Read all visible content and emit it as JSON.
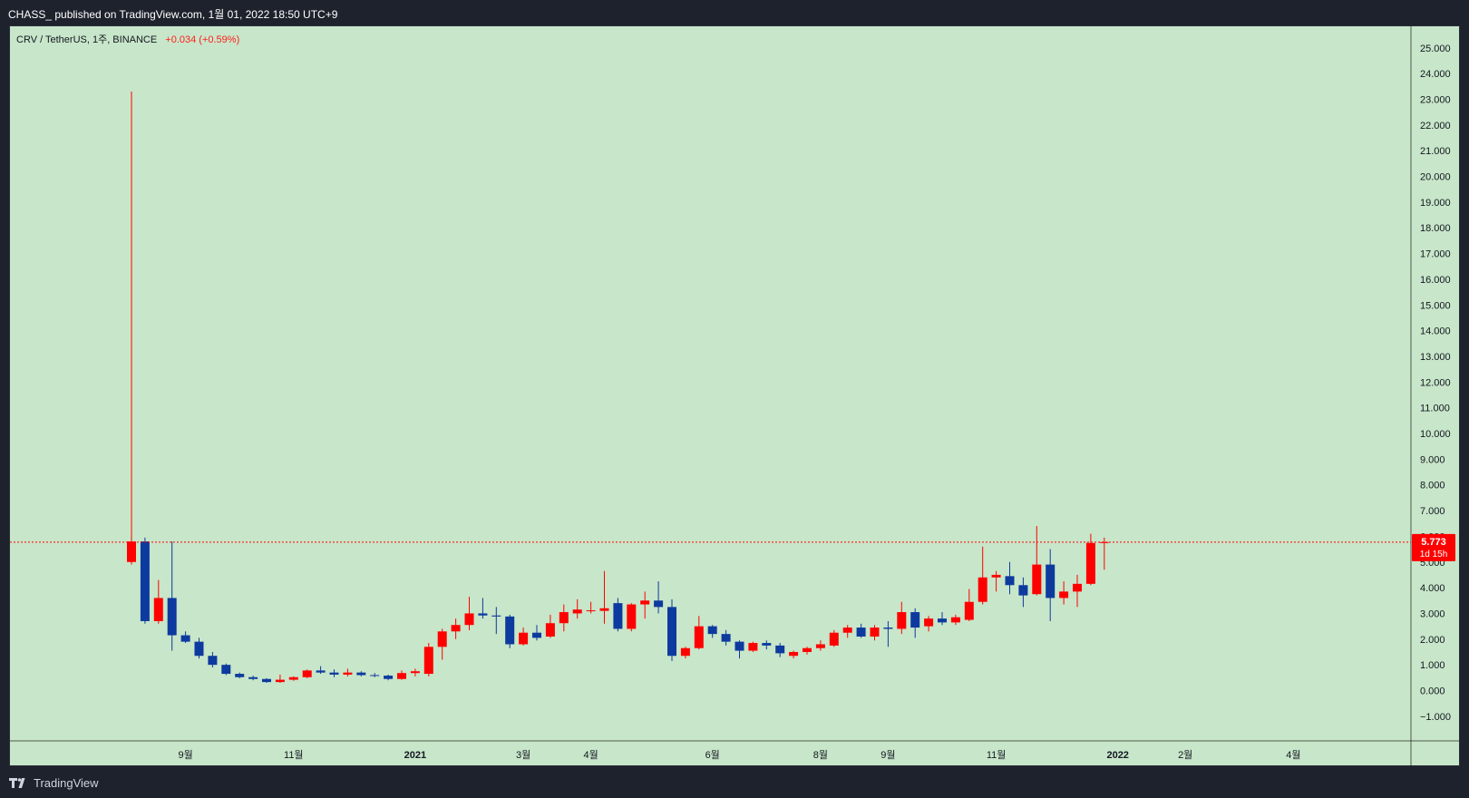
{
  "header": {
    "publish_line": "CHASS_ published on TradingView.com, 1월 01, 2022 18:50 UTC+9"
  },
  "legend": {
    "symbol": "CRV / TetherUS, 1주, BINANCE",
    "change": "+0.034 (+0.59%)"
  },
  "footer": {
    "brand": "TradingView"
  },
  "colors": {
    "up": "#ff0000",
    "down": "#0d3a9e",
    "background": "#c8e6c9",
    "last_price": "#ff0000"
  },
  "price_tag": {
    "price": "5.773",
    "countdown": "1d 15h"
  },
  "chart_data": {
    "type": "candlestick",
    "title": "CRV / TetherUS, 1주, BINANCE",
    "timeframe": "1W",
    "ylim": [
      -1.0,
      25.9
    ],
    "y_ticks": [
      "−1.000",
      "0.000",
      "1.000",
      "2.000",
      "3.000",
      "4.000",
      "5.000",
      "6.000",
      "7.000",
      "8.000",
      "9.000",
      "10.000",
      "11.000",
      "12.000",
      "13.000",
      "14.000",
      "15.000",
      "16.000",
      "17.000",
      "18.000",
      "19.000",
      "20.000",
      "21.000",
      "22.000",
      "23.000",
      "24.000",
      "25.000"
    ],
    "x_labels": [
      {
        "label": "9월",
        "bar": 4
      },
      {
        "label": "11월",
        "bar": 12
      },
      {
        "label": "2021",
        "bar": 21
      },
      {
        "label": "3월",
        "bar": 29
      },
      {
        "label": "4월",
        "bar": 34
      },
      {
        "label": "6월",
        "bar": 43
      },
      {
        "label": "8월",
        "bar": 51
      },
      {
        "label": "9월",
        "bar": 56
      },
      {
        "label": "11월",
        "bar": 64
      },
      {
        "label": "2022",
        "bar": 73
      },
      {
        "label": "2월",
        "bar": 78
      },
      {
        "label": "4월",
        "bar": 86
      }
    ],
    "last_price": 5.773,
    "candles": [
      {
        "o": 5.0,
        "h": 23.3,
        "l": 4.9,
        "c": 5.8
      },
      {
        "o": 5.8,
        "h": 5.95,
        "l": 2.6,
        "c": 2.7
      },
      {
        "o": 2.7,
        "h": 4.3,
        "l": 2.6,
        "c": 3.6
      },
      {
        "o": 3.6,
        "h": 5.8,
        "l": 1.55,
        "c": 2.15
      },
      {
        "o": 2.15,
        "h": 2.3,
        "l": 1.85,
        "c": 1.9
      },
      {
        "o": 1.9,
        "h": 2.05,
        "l": 1.25,
        "c": 1.35
      },
      {
        "o": 1.35,
        "h": 1.5,
        "l": 0.9,
        "c": 1.0
      },
      {
        "o": 1.0,
        "h": 1.05,
        "l": 0.6,
        "c": 0.65
      },
      {
        "o": 0.65,
        "h": 0.7,
        "l": 0.48,
        "c": 0.52
      },
      {
        "o": 0.52,
        "h": 0.58,
        "l": 0.4,
        "c": 0.45
      },
      {
        "o": 0.45,
        "h": 0.48,
        "l": 0.3,
        "c": 0.33
      },
      {
        "o": 0.33,
        "h": 0.62,
        "l": 0.3,
        "c": 0.42
      },
      {
        "o": 0.42,
        "h": 0.55,
        "l": 0.38,
        "c": 0.52
      },
      {
        "o": 0.52,
        "h": 0.82,
        "l": 0.48,
        "c": 0.78
      },
      {
        "o": 0.78,
        "h": 0.95,
        "l": 0.65,
        "c": 0.7
      },
      {
        "o": 0.7,
        "h": 0.82,
        "l": 0.52,
        "c": 0.62
      },
      {
        "o": 0.62,
        "h": 0.85,
        "l": 0.55,
        "c": 0.7
      },
      {
        "o": 0.7,
        "h": 0.75,
        "l": 0.55,
        "c": 0.6
      },
      {
        "o": 0.6,
        "h": 0.68,
        "l": 0.52,
        "c": 0.58
      },
      {
        "o": 0.58,
        "h": 0.62,
        "l": 0.4,
        "c": 0.45
      },
      {
        "o": 0.45,
        "h": 0.78,
        "l": 0.42,
        "c": 0.68
      },
      {
        "o": 0.68,
        "h": 0.85,
        "l": 0.55,
        "c": 0.75
      },
      {
        "o": 0.65,
        "h": 1.85,
        "l": 0.55,
        "c": 1.7
      },
      {
        "o": 1.7,
        "h": 2.4,
        "l": 1.2,
        "c": 2.3
      },
      {
        "o": 2.3,
        "h": 2.8,
        "l": 2.0,
        "c": 2.55
      },
      {
        "o": 2.55,
        "h": 3.65,
        "l": 2.35,
        "c": 3.0
      },
      {
        "o": 3.0,
        "h": 3.6,
        "l": 2.8,
        "c": 2.92
      },
      {
        "o": 2.92,
        "h": 3.25,
        "l": 2.2,
        "c": 2.88
      },
      {
        "o": 2.88,
        "h": 2.95,
        "l": 1.65,
        "c": 1.8
      },
      {
        "o": 1.8,
        "h": 2.45,
        "l": 1.75,
        "c": 2.25
      },
      {
        "o": 2.25,
        "h": 2.55,
        "l": 1.95,
        "c": 2.05
      },
      {
        "o": 2.1,
        "h": 2.95,
        "l": 2.05,
        "c": 2.62
      },
      {
        "o": 2.62,
        "h": 3.35,
        "l": 2.3,
        "c": 3.05
      },
      {
        "o": 3.0,
        "h": 3.55,
        "l": 2.8,
        "c": 3.15
      },
      {
        "o": 3.1,
        "h": 3.45,
        "l": 3.0,
        "c": 3.12
      },
      {
        "o": 3.1,
        "h": 4.65,
        "l": 2.6,
        "c": 3.2
      },
      {
        "o": 3.4,
        "h": 3.6,
        "l": 2.3,
        "c": 2.4
      },
      {
        "o": 2.4,
        "h": 3.4,
        "l": 2.3,
        "c": 3.35
      },
      {
        "o": 3.35,
        "h": 3.85,
        "l": 2.8,
        "c": 3.5
      },
      {
        "o": 3.5,
        "h": 4.25,
        "l": 3.0,
        "c": 3.25
      },
      {
        "o": 3.25,
        "h": 3.55,
        "l": 1.15,
        "c": 1.35
      },
      {
        "o": 1.35,
        "h": 1.7,
        "l": 1.25,
        "c": 1.65
      },
      {
        "o": 1.65,
        "h": 2.9,
        "l": 1.6,
        "c": 2.5
      },
      {
        "o": 2.5,
        "h": 2.55,
        "l": 2.05,
        "c": 2.2
      },
      {
        "o": 2.2,
        "h": 2.35,
        "l": 1.75,
        "c": 1.9
      },
      {
        "o": 1.9,
        "h": 1.95,
        "l": 1.25,
        "c": 1.55
      },
      {
        "o": 1.55,
        "h": 1.9,
        "l": 1.5,
        "c": 1.85
      },
      {
        "o": 1.85,
        "h": 1.95,
        "l": 1.6,
        "c": 1.75
      },
      {
        "o": 1.75,
        "h": 1.85,
        "l": 1.3,
        "c": 1.45
      },
      {
        "o": 1.35,
        "h": 1.55,
        "l": 1.25,
        "c": 1.5
      },
      {
        "o": 1.5,
        "h": 1.7,
        "l": 1.4,
        "c": 1.65
      },
      {
        "o": 1.65,
        "h": 1.95,
        "l": 1.55,
        "c": 1.8
      },
      {
        "o": 1.75,
        "h": 2.35,
        "l": 1.7,
        "c": 2.25
      },
      {
        "o": 2.25,
        "h": 2.55,
        "l": 2.05,
        "c": 2.45
      },
      {
        "o": 2.45,
        "h": 2.6,
        "l": 2.05,
        "c": 2.1
      },
      {
        "o": 2.1,
        "h": 2.55,
        "l": 1.95,
        "c": 2.45
      },
      {
        "o": 2.45,
        "h": 2.7,
        "l": 1.7,
        "c": 2.4
      },
      {
        "o": 2.4,
        "h": 3.45,
        "l": 2.2,
        "c": 3.05
      },
      {
        "o": 3.05,
        "h": 3.2,
        "l": 2.05,
        "c": 2.45
      },
      {
        "o": 2.5,
        "h": 2.9,
        "l": 2.3,
        "c": 2.8
      },
      {
        "o": 2.8,
        "h": 3.05,
        "l": 2.55,
        "c": 2.65
      },
      {
        "o": 2.65,
        "h": 2.95,
        "l": 2.55,
        "c": 2.85
      },
      {
        "o": 2.75,
        "h": 3.95,
        "l": 2.7,
        "c": 3.45
      },
      {
        "o": 3.45,
        "h": 5.6,
        "l": 3.35,
        "c": 4.4
      },
      {
        "o": 4.4,
        "h": 4.65,
        "l": 3.85,
        "c": 4.5
      },
      {
        "o": 4.45,
        "h": 5.0,
        "l": 3.75,
        "c": 4.1
      },
      {
        "o": 4.1,
        "h": 4.4,
        "l": 3.25,
        "c": 3.7
      },
      {
        "o": 3.75,
        "h": 6.4,
        "l": 3.7,
        "c": 4.9
      },
      {
        "o": 4.9,
        "h": 5.5,
        "l": 2.7,
        "c": 3.6
      },
      {
        "o": 3.6,
        "h": 4.25,
        "l": 3.35,
        "c": 3.85
      },
      {
        "o": 3.85,
        "h": 4.5,
        "l": 3.25,
        "c": 4.15
      },
      {
        "o": 4.15,
        "h": 6.1,
        "l": 4.1,
        "c": 5.74
      },
      {
        "o": 5.74,
        "h": 5.95,
        "l": 4.7,
        "c": 5.773
      }
    ]
  }
}
